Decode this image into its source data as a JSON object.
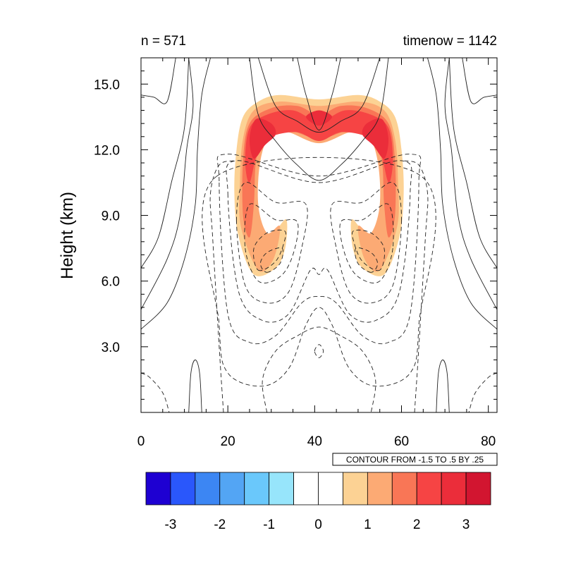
{
  "chart_data": {
    "type": "contour",
    "top_left_label": "n = 571",
    "top_right_label": "timenow = 1142",
    "xlabel": "",
    "ylabel": "Height (km)",
    "xlim": [
      0,
      82
    ],
    "ylim": [
      0,
      16.2
    ],
    "x_ticks": [
      0,
      20,
      40,
      60,
      80
    ],
    "x_tick_labels": [
      "0",
      "20",
      "40",
      "60",
      "80"
    ],
    "y_ticks": [
      3,
      6,
      9,
      12,
      15
    ],
    "y_tick_labels": [
      "3.0",
      "6.0",
      "9.0",
      "12.0",
      "15.0"
    ],
    "contour_info": "CONTOUR FROM -1.5 TO .5 BY .25",
    "colorbar": {
      "range": [
        -3.5,
        3.5
      ],
      "colors": [
        "#1e00d2",
        "#2a57fb",
        "#3c86f3",
        "#53a5f4",
        "#6ac8fb",
        "#97e5fb",
        "#ffffff",
        "#ffffff",
        "#fcd294",
        "#fcaa74",
        "#f97656",
        "#f64444",
        "#eb2d3a",
        "#d21530"
      ],
      "tick_values": [
        -3,
        -2,
        -1,
        0,
        1,
        2,
        3
      ],
      "tick_labels": [
        "-3",
        "-2",
        "-1",
        "0",
        "1",
        "2",
        "3"
      ]
    },
    "filled_regions": [
      {
        "name": "arc",
        "level": 1.0,
        "color": "#fcd294",
        "outer": [
          [
            26,
            6.3
          ],
          [
            22.5,
            8
          ],
          [
            21.5,
            10
          ],
          [
            22,
            12
          ],
          [
            23.5,
            13.5
          ],
          [
            27,
            14.2
          ],
          [
            32,
            14.5
          ],
          [
            41,
            14.3
          ],
          [
            50,
            14.5
          ],
          [
            55,
            14.2
          ],
          [
            58.5,
            13.5
          ],
          [
            60,
            12
          ],
          [
            60.5,
            10
          ],
          [
            59.5,
            8
          ],
          [
            56,
            6.3
          ],
          [
            51,
            6.6
          ],
          [
            48.8,
            7.5
          ],
          [
            48.5,
            8.8
          ],
          [
            51,
            8.3
          ],
          [
            54,
            7.8
          ],
          [
            55.5,
            8.5
          ],
          [
            56,
            10
          ],
          [
            55,
            11.8
          ],
          [
            52.5,
            13.2
          ],
          [
            48,
            13.1
          ],
          [
            44,
            12.7
          ],
          [
            41,
            12.5
          ],
          [
            38,
            12.7
          ],
          [
            34,
            13.1
          ],
          [
            29.5,
            13.2
          ],
          [
            27,
            11.8
          ],
          [
            26,
            10
          ],
          [
            26.5,
            8.5
          ],
          [
            28,
            7.8
          ],
          [
            31,
            8.3
          ],
          [
            33.5,
            8.8
          ],
          [
            33.2,
            7.5
          ],
          [
            31,
            6.6
          ]
        ]
      },
      {
        "name": "arc",
        "level": 1.5,
        "color": "#fcaa74",
        "outer": [
          [
            27,
            6.5
          ],
          [
            23,
            8.5
          ],
          [
            22.8,
            10.5
          ],
          [
            23.5,
            12.5
          ],
          [
            26,
            13.8
          ],
          [
            32,
            14.2
          ],
          [
            41,
            14
          ],
          [
            50,
            14.2
          ],
          [
            56,
            13.8
          ],
          [
            58.5,
            12.5
          ],
          [
            59.2,
            10.5
          ],
          [
            59,
            8.5
          ],
          [
            55,
            6.5
          ],
          [
            51.5,
            7
          ],
          [
            50,
            8.5
          ],
          [
            53,
            8.2
          ],
          [
            55,
            9.5
          ],
          [
            54.5,
            11.5
          ],
          [
            52,
            12.8
          ],
          [
            48,
            12.8
          ],
          [
            41,
            12.3
          ],
          [
            34,
            12.8
          ],
          [
            30,
            12.8
          ],
          [
            27.5,
            11.5
          ],
          [
            27,
            9.5
          ],
          [
            29,
            8.2
          ],
          [
            32,
            8.5
          ],
          [
            30.5,
            7
          ]
        ]
      },
      {
        "name": "arc",
        "level": 2.0,
        "color": "#f97656",
        "outer": [
          [
            23.5,
            9
          ],
          [
            23.5,
            11.5
          ],
          [
            25,
            13.2
          ],
          [
            30,
            13.9
          ],
          [
            36,
            14
          ],
          [
            41,
            13.6
          ],
          [
            46,
            14
          ],
          [
            52,
            13.9
          ],
          [
            57,
            13.2
          ],
          [
            58.5,
            11.5
          ],
          [
            58.5,
            9
          ],
          [
            57,
            8
          ],
          [
            56,
            9.5
          ],
          [
            55.5,
            11.5
          ],
          [
            53.5,
            12.8
          ],
          [
            48,
            12.9
          ],
          [
            41,
            12.5
          ],
          [
            34,
            12.9
          ],
          [
            28.5,
            12.8
          ],
          [
            26.5,
            11.5
          ],
          [
            26,
            9.5
          ],
          [
            25,
            8
          ]
        ]
      },
      {
        "name": "core",
        "level": 2.5,
        "color": "#f64444",
        "outer": [
          [
            24,
            11.5
          ],
          [
            25,
            13
          ],
          [
            29,
            13.6
          ],
          [
            35,
            13.8
          ],
          [
            41,
            13.3
          ],
          [
            47,
            13.8
          ],
          [
            53,
            13.6
          ],
          [
            57,
            13
          ],
          [
            58,
            11.5
          ],
          [
            57,
            10.5
          ],
          [
            55,
            12
          ],
          [
            52,
            12.6
          ],
          [
            46,
            12.8
          ],
          [
            41,
            12.4
          ],
          [
            36,
            12.8
          ],
          [
            30,
            12.6
          ],
          [
            27,
            12
          ],
          [
            25,
            10.5
          ]
        ]
      },
      {
        "name": "core",
        "level": 3.0,
        "color": "#eb2d3a",
        "outer": [
          [
            25,
            12.5
          ],
          [
            26.5,
            13.4
          ],
          [
            30,
            13.2
          ],
          [
            31,
            12.7
          ],
          [
            28.5,
            12.2
          ],
          [
            26,
            11.6
          ]
        ]
      },
      {
        "name": "core",
        "level": 3.0,
        "color": "#eb2d3a",
        "outer": [
          [
            57,
            12.5
          ],
          [
            55.5,
            13.4
          ],
          [
            52,
            13.2
          ],
          [
            51,
            12.7
          ],
          [
            53.5,
            12.2
          ],
          [
            56,
            11.6
          ]
        ]
      },
      {
        "name": "core",
        "level": 3.0,
        "color": "#eb2d3a",
        "outer": [
          [
            38,
            13.5
          ],
          [
            41,
            13.8
          ],
          [
            44,
            13.5
          ],
          [
            41,
            13.1
          ]
        ]
      }
    ],
    "solid_contours": [
      [
        [
          0,
          14.5
        ],
        [
          3,
          14.4
        ],
        [
          6,
          14.2
        ],
        [
          8,
          16.2
        ]
      ],
      [
        [
          0,
          6.6
        ],
        [
          4,
          8
        ],
        [
          7,
          10.5
        ],
        [
          10,
          13
        ],
        [
          11,
          16.2
        ]
      ],
      [
        [
          0,
          4.7
        ],
        [
          6,
          7
        ],
        [
          9,
          9
        ],
        [
          10.5,
          12
        ],
        [
          12,
          14
        ],
        [
          11,
          16.2
        ]
      ],
      [
        [
          0,
          3.8
        ],
        [
          6,
          5
        ],
        [
          10,
          7
        ],
        [
          12.5,
          9.5
        ],
        [
          13,
          12
        ],
        [
          14,
          14.5
        ],
        [
          16,
          16.2
        ]
      ],
      [
        [
          25,
          16.2
        ],
        [
          27,
          13.6
        ],
        [
          31,
          12.4
        ],
        [
          36,
          11.3
        ],
        [
          41,
          10.6
        ],
        [
          46,
          11.3
        ],
        [
          51,
          12.4
        ],
        [
          55,
          13.6
        ],
        [
          57,
          16.2
        ]
      ],
      [
        [
          27,
          16.2
        ],
        [
          31,
          14
        ],
        [
          36,
          13.3
        ],
        [
          41,
          12.8
        ],
        [
          46,
          13.3
        ],
        [
          51,
          14
        ],
        [
          55,
          16.2
        ]
      ],
      [
        [
          36,
          16.2
        ],
        [
          38,
          14.5
        ],
        [
          41,
          12.9
        ],
        [
          44,
          14.5
        ],
        [
          46,
          16.2
        ]
      ],
      [
        [
          82,
          14.5
        ],
        [
          79,
          14.4
        ],
        [
          76,
          14.2
        ],
        [
          74,
          16.2
        ]
      ],
      [
        [
          82,
          6.6
        ],
        [
          78,
          8
        ],
        [
          75,
          10.5
        ],
        [
          72,
          13
        ],
        [
          71,
          16.2
        ]
      ],
      [
        [
          82,
          4.7
        ],
        [
          76,
          7
        ],
        [
          73,
          9
        ],
        [
          71.5,
          12
        ],
        [
          70,
          14
        ],
        [
          71,
          16.2
        ]
      ],
      [
        [
          82,
          3.8
        ],
        [
          76,
          5
        ],
        [
          72,
          7
        ],
        [
          69.5,
          9.5
        ],
        [
          69,
          12
        ],
        [
          68,
          14.5
        ],
        [
          66,
          16.2
        ]
      ],
      [
        [
          11,
          0
        ],
        [
          11.5,
          1.8
        ],
        [
          12.5,
          2.4
        ],
        [
          13.5,
          1.8
        ],
        [
          14,
          0
        ]
      ],
      [
        [
          71,
          0
        ],
        [
          70.5,
          1.8
        ],
        [
          69.5,
          2.4
        ],
        [
          68.5,
          1.8
        ],
        [
          68,
          0
        ]
      ]
    ],
    "dashed_contours": [
      [
        [
          29,
          6.4
        ],
        [
          32,
          6.8
        ],
        [
          32.5,
          7.5
        ],
        [
          29,
          7.3
        ],
        [
          27.5,
          6.8
        ]
      ],
      [
        [
          53,
          6.4
        ],
        [
          50,
          6.8
        ],
        [
          49.5,
          7.5
        ],
        [
          53,
          7.3
        ],
        [
          54.5,
          6.8
        ]
      ],
      [
        [
          27,
          6.5
        ],
        [
          31,
          6.9
        ],
        [
          33,
          7.8
        ],
        [
          33,
          8.3
        ],
        [
          29,
          8.2
        ],
        [
          26,
          7.5
        ]
      ],
      [
        [
          55,
          6.5
        ],
        [
          51,
          6.9
        ],
        [
          49,
          7.8
        ],
        [
          49,
          8.3
        ],
        [
          53,
          8.2
        ],
        [
          56,
          7.5
        ]
      ],
      [
        [
          24,
          7.5
        ],
        [
          27,
          6
        ],
        [
          32,
          6.2
        ],
        [
          35,
          7.2
        ],
        [
          36,
          8.7
        ],
        [
          31,
          8.8
        ],
        [
          25,
          9.5
        ]
      ],
      [
        [
          58,
          7.5
        ],
        [
          55,
          6
        ],
        [
          50,
          6.2
        ],
        [
          47,
          7.2
        ],
        [
          46,
          8.7
        ],
        [
          51,
          8.8
        ],
        [
          57,
          9.5
        ]
      ],
      [
        [
          22,
          8.8
        ],
        [
          24,
          5.8
        ],
        [
          29,
          5
        ],
        [
          34,
          5.5
        ],
        [
          37,
          7.5
        ],
        [
          38,
          9.5
        ],
        [
          31,
          9.6
        ],
        [
          24,
          10.5
        ]
      ],
      [
        [
          60,
          8.8
        ],
        [
          58,
          5.8
        ],
        [
          53,
          5
        ],
        [
          48,
          5.5
        ],
        [
          45,
          7.5
        ],
        [
          44,
          9.5
        ],
        [
          51,
          9.6
        ],
        [
          58,
          10.5
        ]
      ],
      [
        [
          20,
          10
        ],
        [
          22.5,
          5.5
        ],
        [
          28,
          4.2
        ],
        [
          34,
          4.5
        ],
        [
          39,
          6.5
        ],
        [
          41,
          6.3
        ],
        [
          43,
          6.5
        ],
        [
          48,
          4.5
        ],
        [
          54,
          4.2
        ],
        [
          59.5,
          5.5
        ],
        [
          62,
          10
        ],
        [
          60,
          11.5
        ],
        [
          41,
          10.5
        ],
        [
          22,
          11.5
        ]
      ],
      [
        [
          18,
          10.5
        ],
        [
          20,
          4.5
        ],
        [
          25,
          3.2
        ],
        [
          31,
          3.5
        ],
        [
          37,
          5
        ],
        [
          41,
          5.3
        ],
        [
          45,
          5
        ],
        [
          51,
          3.5
        ],
        [
          57,
          3.2
        ],
        [
          62,
          4.5
        ],
        [
          64,
          10.5
        ],
        [
          62,
          11.8
        ],
        [
          41,
          10.8
        ],
        [
          20,
          11.8
        ]
      ],
      [
        [
          17.5,
          10.8
        ],
        [
          18,
          4
        ],
        [
          20,
          1.8
        ],
        [
          28,
          1.2
        ],
        [
          34,
          2
        ],
        [
          38,
          4
        ],
        [
          41,
          4.8
        ],
        [
          44,
          4
        ],
        [
          48,
          2
        ],
        [
          54,
          1.2
        ],
        [
          62,
          1.8
        ],
        [
          64,
          4
        ],
        [
          64.5,
          10.8
        ]
      ],
      [
        [
          19,
          0
        ],
        [
          18,
          3
        ],
        [
          16.5,
          8
        ],
        [
          16,
          10
        ],
        [
          18,
          11.3
        ],
        [
          22,
          11.5
        ]
      ],
      [
        [
          63,
          0
        ],
        [
          64,
          3
        ],
        [
          65.5,
          8
        ],
        [
          66,
          10
        ],
        [
          64,
          11.3
        ],
        [
          60,
          11.5
        ]
      ],
      [
        [
          29,
          0
        ],
        [
          28,
          1.5
        ],
        [
          31,
          2.8
        ],
        [
          36,
          3.5
        ],
        [
          41,
          3.9
        ],
        [
          46,
          3.5
        ],
        [
          51,
          2.8
        ],
        [
          54,
          1.5
        ],
        [
          53,
          0
        ]
      ],
      [
        [
          40,
          2.8
        ],
        [
          41,
          3.1
        ],
        [
          42,
          2.8
        ],
        [
          41,
          2.5
        ]
      ],
      [
        [
          0,
          1.8
        ],
        [
          2,
          1.6
        ],
        [
          5,
          0.9
        ],
        [
          6.5,
          0
        ]
      ],
      [
        [
          82,
          1.8
        ],
        [
          80,
          1.6
        ],
        [
          77,
          0.9
        ],
        [
          75.5,
          0
        ]
      ]
    ]
  }
}
